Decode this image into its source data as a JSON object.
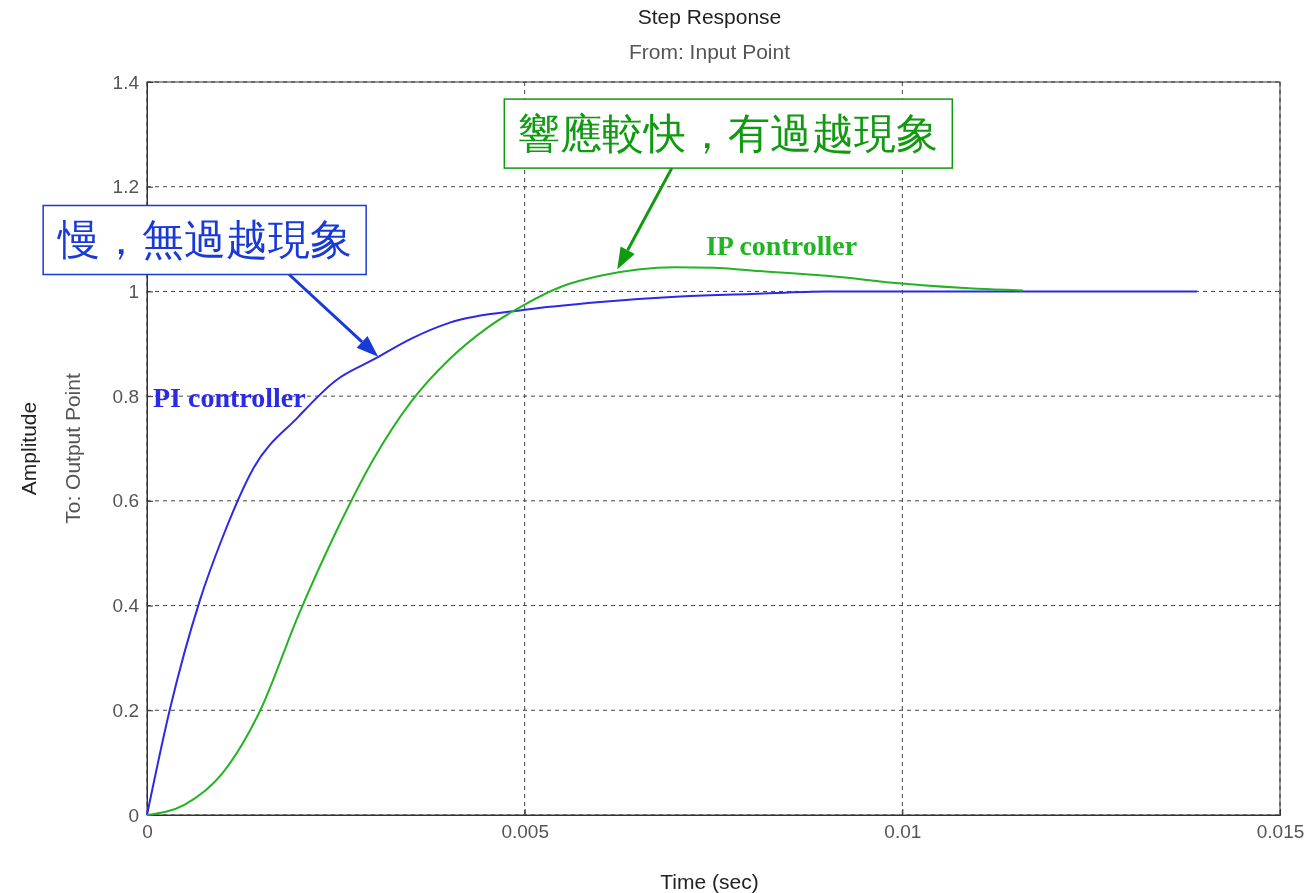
{
  "chart_data": {
    "type": "line",
    "title": "Step Response",
    "subtitle": "From: Input Point",
    "xlabel": "Time (sec)",
    "ylabel": "Amplitude",
    "xlim": [
      0,
      0.015
    ],
    "xticks": [
      0,
      0.005,
      0.01,
      0.015
    ],
    "ylim": [
      0,
      1.4
    ],
    "yticks": [
      0,
      0.2,
      0.4,
      0.6,
      0.8,
      1,
      1.2,
      1.4
    ],
    "grid": true,
    "legend": false,
    "line_style": "solid",
    "marker": "none",
    "series": [
      {
        "name": "PI controller",
        "color": "#2a2ae8",
        "x": [
          0,
          0.0003,
          0.0007,
          0.001,
          0.0014,
          0.002,
          0.0025,
          0.003,
          0.0035,
          0.004,
          0.005,
          0.006,
          0.007,
          0.008,
          0.009,
          0.011,
          0.0139
        ],
        "values": [
          0,
          0.2,
          0.41,
          0.53,
          0.66,
          0.76,
          0.83,
          0.87,
          0.91,
          0.94,
          0.965,
          0.98,
          0.99,
          0.995,
          1.0,
          1.0,
          1.0
        ]
      },
      {
        "name": "IP controller",
        "color": "#22b422",
        "x": [
          0,
          0.0005,
          0.001,
          0.0015,
          0.002,
          0.0025,
          0.003,
          0.0035,
          0.004,
          0.0045,
          0.005,
          0.0055,
          0.006,
          0.0065,
          0.007,
          0.0075,
          0.008,
          0.009,
          0.01,
          0.011,
          0.0116
        ],
        "values": [
          0,
          0.02,
          0.08,
          0.2,
          0.38,
          0.54,
          0.68,
          0.79,
          0.87,
          0.93,
          0.975,
          1.01,
          1.03,
          1.042,
          1.046,
          1.045,
          1.04,
          1.03,
          1.015,
          1.005,
          1.002
        ]
      }
    ],
    "annotations": [
      "To: Output Point",
      {
        "text": "響應較快，有過越現象",
        "x": 0.0062,
        "y": 1.035
      },
      {
        "text": "慢，無過越現象",
        "x": 0.0031,
        "y": 0.87
      }
    ]
  }
}
